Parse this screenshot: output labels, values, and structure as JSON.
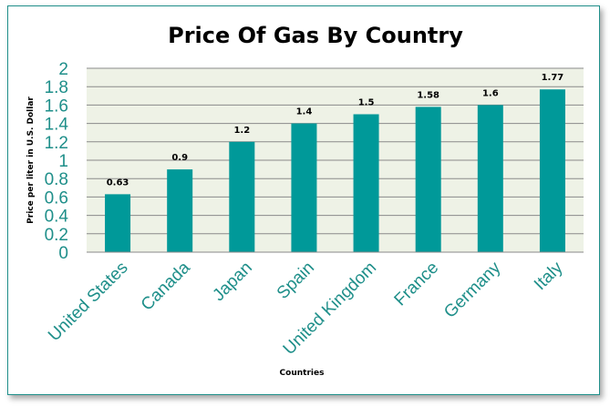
{
  "chart_data": {
    "type": "bar",
    "title": "Price Of Gas By Country",
    "xlabel": "Countries",
    "ylabel": "Price per liter in U.S. Dollar",
    "categories": [
      "United States",
      "Canada",
      "Japan",
      "Spain",
      "United Kingdom",
      "France",
      "Germany",
      "Italy"
    ],
    "values": [
      0.63,
      0.9,
      1.2,
      1.4,
      1.5,
      1.58,
      1.6,
      1.77
    ],
    "data_labels": [
      "0.63",
      "0.9",
      "1.2",
      "1.4",
      "1.5",
      "1.58",
      "1.6",
      "1.77"
    ],
    "ylim": [
      0,
      2
    ],
    "yticks": [
      "0",
      "0.2",
      "0.4",
      "0.6",
      "0.8",
      "1",
      "1.2",
      "1.4",
      "1.6",
      "1.8",
      "2"
    ],
    "grid": true,
    "legend": "none",
    "colors": {
      "bar": "#009999",
      "plot_bg": "#eef2e6",
      "gridline": "#8a8a8a",
      "tick_text": "#1f8f8a",
      "frame_border": "#1f8f8a"
    }
  }
}
